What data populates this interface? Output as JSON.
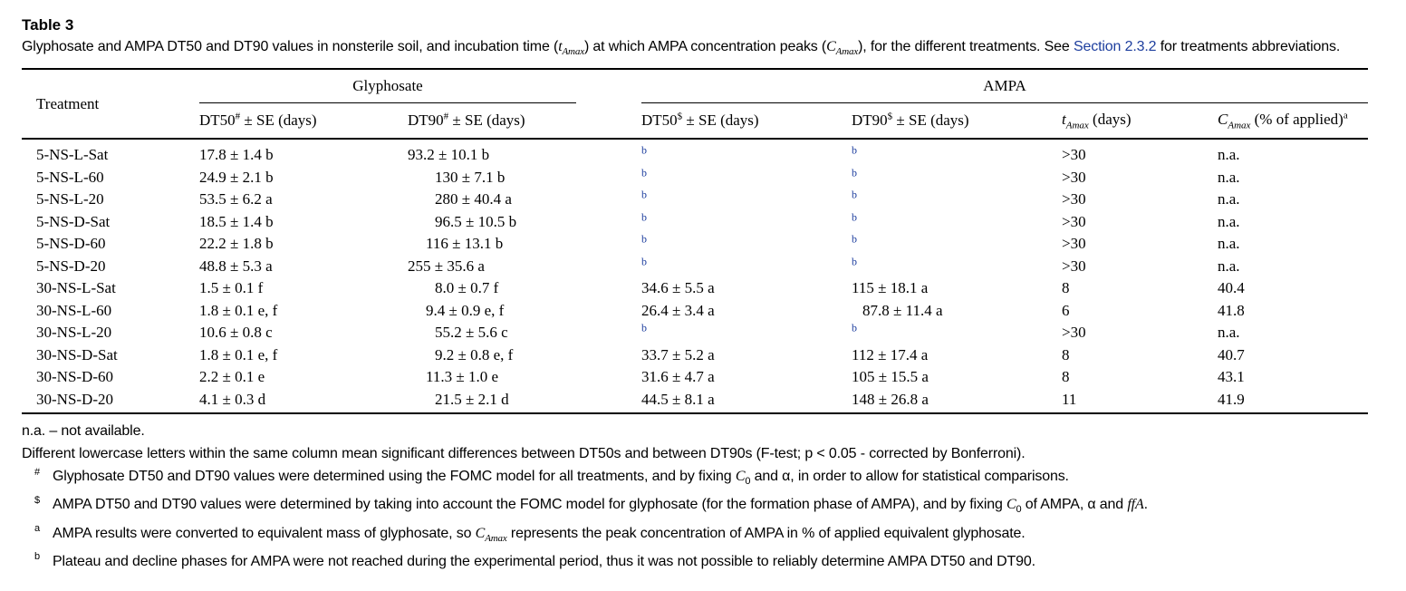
{
  "table": {
    "title": "Table 3",
    "caption_parts": {
      "p1": "Glyphosate and AMPA DT50 and DT90 values in nonsterile soil, and incubation time (",
      "t_sym": "t",
      "t_sub": "Amax",
      "p2": ") at which AMPA concentration peaks (",
      "c_sym": "C",
      "c_sub": "Amax",
      "p3": "), for the different treatments. See ",
      "link": "Section 2.3.2",
      "p4": " for treatments abbreviations."
    },
    "headers": {
      "treatment": "Treatment",
      "glyphosate": "Glyphosate",
      "ampa": "AMPA",
      "g_dt50": "DT50",
      "g_dt50_sup": "#",
      "g_dt50_rest": " ± SE (days)",
      "g_dt90": "DT90",
      "g_dt90_sup": "#",
      "g_dt90_rest": " ± SE (days)",
      "a_dt50": "DT50",
      "a_dt50_sup": "$",
      "a_dt50_rest": " ± SE (days)",
      "a_dt90": "DT90",
      "a_dt90_sup": "$",
      "a_dt90_rest": " ± SE (days)",
      "tamax_sym": "t",
      "tamax_sub": "Amax",
      "tamax_rest": " (days)",
      "camax_sym": "C",
      "camax_sub": "Amax",
      "camax_rest": " (% of applied)",
      "camax_sup": "a"
    },
    "rows": [
      {
        "treatment": "5-NS-L-Sat",
        "g_dt50": "17.8 ± 1.4 b",
        "g_dt90": "93.2 ± 10.1 b",
        "a_dt50": "b",
        "a_dt90": "b",
        "tamax": ">30",
        "camax": "n.a."
      },
      {
        "treatment": "5-NS-L-60",
        "g_dt50": "24.9 ± 2.1 b",
        "g_dt90": "130 ± 7.1 b",
        "a_dt50": "b",
        "a_dt90": "b",
        "tamax": ">30",
        "camax": "n.a."
      },
      {
        "treatment": "5-NS-L-20",
        "g_dt50": "53.5 ± 6.2 a",
        "g_dt90": "280 ± 40.4 a",
        "a_dt50": "b",
        "a_dt90": "b",
        "tamax": ">30",
        "camax": "n.a."
      },
      {
        "treatment": "5-NS-D-Sat",
        "g_dt50": "18.5 ± 1.4 b",
        "g_dt90": "96.5 ± 10.5 b",
        "a_dt50": "b",
        "a_dt90": "b",
        "tamax": ">30",
        "camax": "n.a."
      },
      {
        "treatment": "5-NS-D-60",
        "g_dt50": "22.2 ± 1.8 b",
        "g_dt90": "116 ± 13.1 b",
        "a_dt50": "b",
        "a_dt90": "b",
        "tamax": ">30",
        "camax": "n.a."
      },
      {
        "treatment": "5-NS-D-20",
        "g_dt50": "48.8 ± 5.3 a",
        "g_dt90": "255 ± 35.6 a",
        "a_dt50": "b",
        "a_dt90": "b",
        "tamax": ">30",
        "camax": "n.a."
      },
      {
        "treatment": "30-NS-L-Sat",
        "g_dt50": "1.5 ± 0.1 f",
        "g_dt90": "8.0 ± 0.7 f",
        "a_dt50": "34.6 ± 5.5 a",
        "a_dt90": "115 ± 18.1 a",
        "tamax": "8",
        "camax": "40.4"
      },
      {
        "treatment": "30-NS-L-60",
        "g_dt50": "1.8 ± 0.1 e, f",
        "g_dt90": "9.4 ± 0.9 e, f",
        "a_dt50": "26.4 ± 3.4 a",
        "a_dt90": "87.8 ± 11.4 a",
        "tamax": "6",
        "camax": "41.8"
      },
      {
        "treatment": "30-NS-L-20",
        "g_dt50": "10.6 ± 0.8 c",
        "g_dt90": "55.2 ± 5.6 c",
        "a_dt50": "b",
        "a_dt90": "b",
        "tamax": ">30",
        "camax": "n.a."
      },
      {
        "treatment": "30-NS-D-Sat",
        "g_dt50": "1.8 ± 0.1 e, f",
        "g_dt90": "9.2 ± 0.8 e, f",
        "a_dt50": "33.7 ± 5.2 a",
        "a_dt90": "112 ± 17.4 a",
        "tamax": "8",
        "camax": "40.7"
      },
      {
        "treatment": "30-NS-D-60",
        "g_dt50": "2.2 ± 0.1 e",
        "g_dt90": "11.3 ± 1.0 e",
        "a_dt50": "31.6 ± 4.7 a",
        "a_dt90": "105 ± 15.5 a",
        "tamax": "8",
        "camax": "43.1"
      },
      {
        "treatment": "30-NS-D-20",
        "g_dt50": "4.1 ± 0.3 d",
        "g_dt90": "21.5 ± 2.1 d",
        "a_dt50": "44.5 ± 8.1 a",
        "a_dt90": "148 ± 26.8 a",
        "tamax": "11",
        "camax": "41.9"
      }
    ],
    "footnotes": {
      "na": "n.a. – not available.",
      "letters": "Different lowercase letters within the same column mean significant differences between DT50s and between DT90s (F-test; p < 0.05 - corrected by Bonferroni).",
      "hash_mark": "#",
      "hash_a": "Glyphosate DT50 and DT90 values were determined using the FOMC model for all treatments, and by fixing ",
      "hash_c0": "C",
      "hash_c0_sub": "0",
      "hash_b": " and α, in order to allow for statistical comparisons.",
      "dollar_mark": "$",
      "dollar_a": "AMPA DT50 and DT90 values were determined by taking into account the FOMC model for glyphosate (for the formation phase of AMPA), and by fixing ",
      "dollar_c0": "C",
      "dollar_c0_sub": "0",
      "dollar_b": " of AMPA, α and ",
      "dollar_ffa": "ffA",
      "dollar_c": ".",
      "a_mark": "a",
      "a_a": "AMPA results were converted to equivalent mass of glyphosate, so ",
      "a_c": "C",
      "a_c_sub": "Amax",
      "a_b": " represents the peak concentration of AMPA in % of applied equivalent glyphosate.",
      "b_mark": "b",
      "b_text": "Plateau and decline phases for AMPA were not reached during the experimental period, thus it was not possible to reliably determine AMPA DT50 and DT90."
    }
  }
}
